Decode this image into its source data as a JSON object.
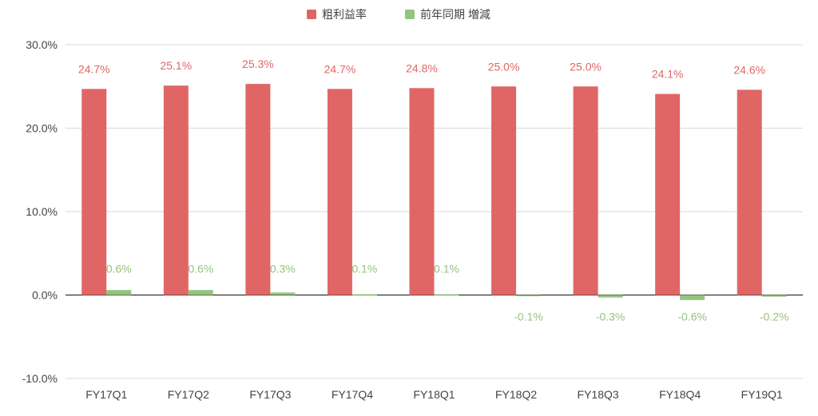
{
  "chart_data": {
    "type": "bar",
    "title": "",
    "xlabel": "",
    "ylabel": "",
    "categories": [
      "FY17Q1",
      "FY17Q2",
      "FY17Q3",
      "FY17Q4",
      "FY18Q1",
      "FY18Q2",
      "FY18Q3",
      "FY18Q4",
      "FY19Q1"
    ],
    "series": [
      {
        "name": "粗利益率",
        "color": "#e06666",
        "values": [
          24.7,
          25.1,
          25.3,
          24.7,
          24.8,
          25.0,
          25.0,
          24.1,
          24.6
        ],
        "labels": [
          "24.7%",
          "25.1%",
          "25.3%",
          "24.7%",
          "24.8%",
          "25.0%",
          "25.0%",
          "24.1%",
          "24.6%"
        ]
      },
      {
        "name": "前年同期 増減",
        "color": "#93c47d",
        "values": [
          0.6,
          0.6,
          0.3,
          0.1,
          0.1,
          -0.1,
          -0.3,
          -0.6,
          -0.2
        ],
        "labels": [
          "0.6%",
          "0.6%",
          "0.3%",
          "0.1%",
          "0.1%",
          "-0.1%",
          "-0.3%",
          "-0.6%",
          "-0.2%"
        ]
      }
    ],
    "ylim": [
      -10,
      30
    ],
    "yticks": [
      -10,
      0,
      10,
      20,
      30
    ],
    "ytick_labels": [
      "-10.0%",
      "0.0%",
      "10.0%",
      "20.0%",
      "30.0%"
    ],
    "grid": true,
    "legend_position": "top-center",
    "label_color_positive": "#e06666",
    "label_color_secondary": "#93c47d"
  }
}
